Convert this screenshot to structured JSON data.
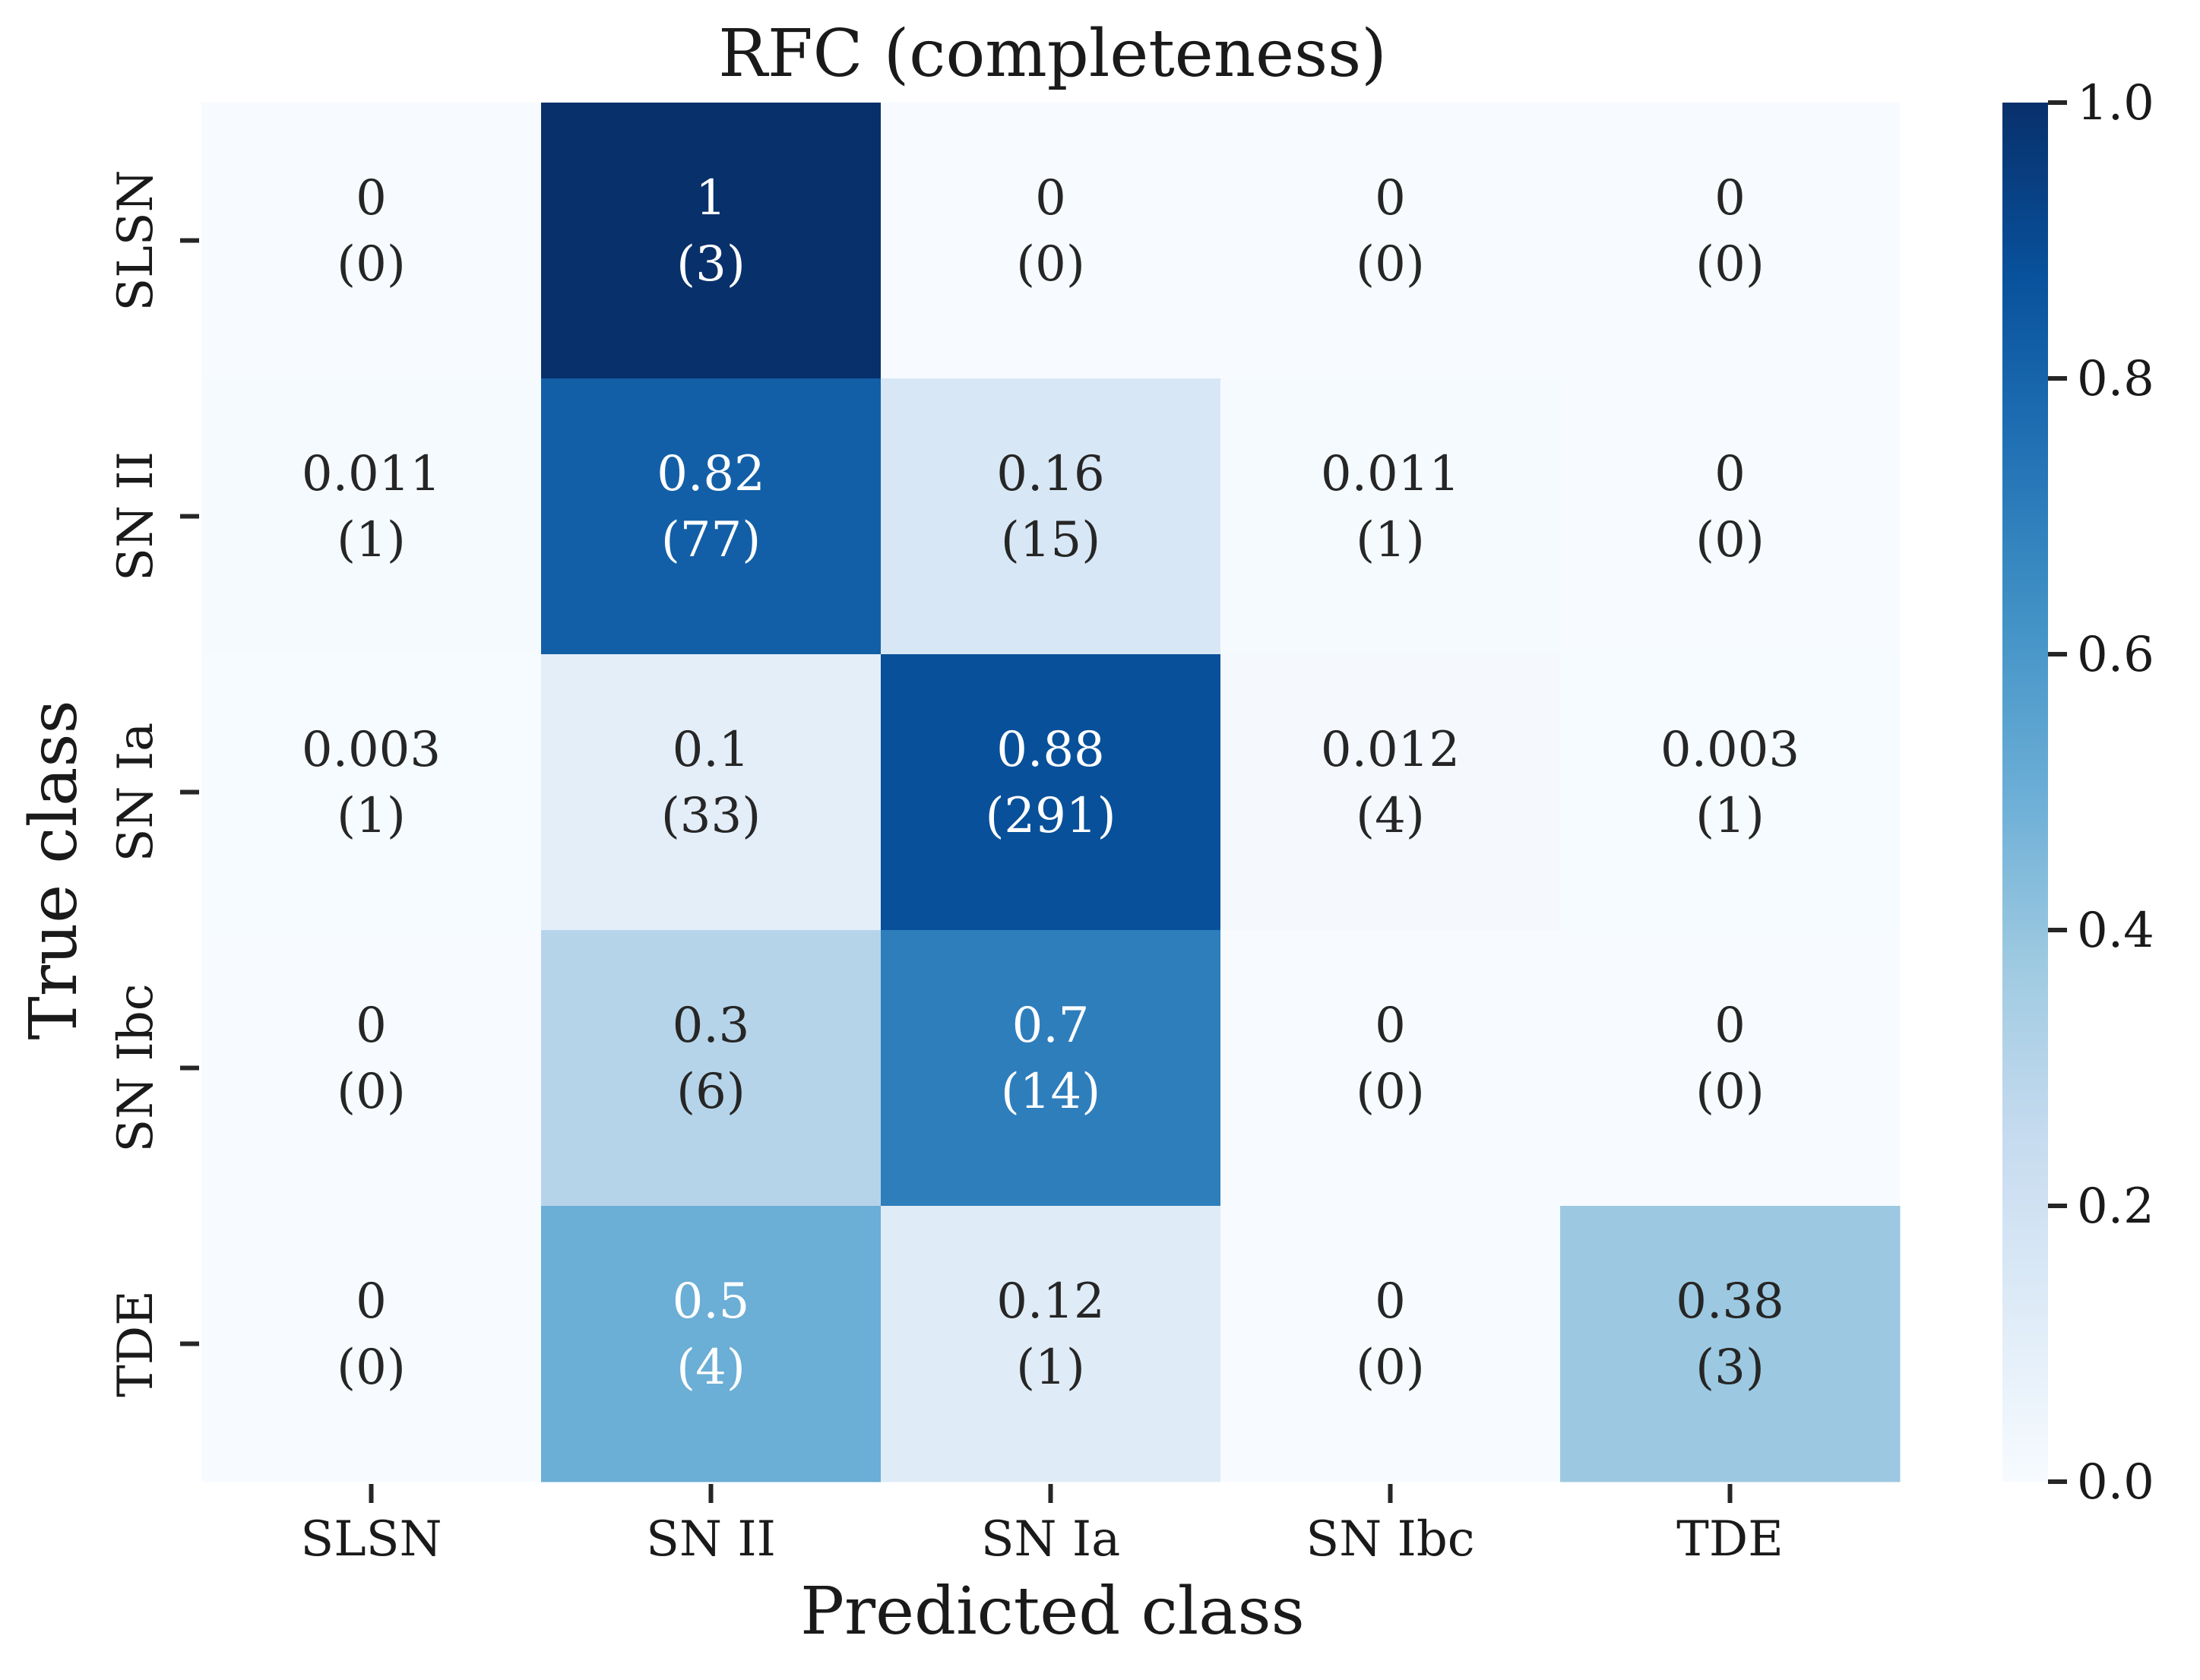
{
  "chart_data": {
    "type": "heatmap",
    "title": "RFC (completeness)",
    "xlabel": "Predicted class",
    "ylabel": "True class",
    "x_categories": [
      "SLSN",
      "SN II",
      "SN Ia",
      "SN Ibc",
      "TDE"
    ],
    "y_categories": [
      "SLSN",
      "SN II",
      "SN Ia",
      "SN Ibc",
      "TDE"
    ],
    "values": [
      [
        0,
        1,
        0,
        0,
        0
      ],
      [
        0.011,
        0.82,
        0.16,
        0.011,
        0
      ],
      [
        0.003,
        0.1,
        0.88,
        0.012,
        0.003
      ],
      [
        0,
        0.3,
        0.7,
        0,
        0
      ],
      [
        0,
        0.5,
        0.12,
        0,
        0.38
      ]
    ],
    "value_labels": [
      [
        "0",
        "1",
        "0",
        "0",
        "0"
      ],
      [
        "0.011",
        "0.82",
        "0.16",
        "0.011",
        "0"
      ],
      [
        "0.003",
        "0.1",
        "0.88",
        "0.012",
        "0.003"
      ],
      [
        "0",
        "0.3",
        "0.7",
        "0",
        "0"
      ],
      [
        "0",
        "0.5",
        "0.12",
        "0",
        "0.38"
      ]
    ],
    "count_labels": [
      [
        "(0)",
        "(3)",
        "(0)",
        "(0)",
        "(0)"
      ],
      [
        "(1)",
        "(77)",
        "(15)",
        "(1)",
        "(0)"
      ],
      [
        "(1)",
        "(33)",
        "(291)",
        "(4)",
        "(1)"
      ],
      [
        "(0)",
        "(6)",
        "(14)",
        "(0)",
        "(0)"
      ],
      [
        "(0)",
        "(4)",
        "(1)",
        "(0)",
        "(3)"
      ]
    ],
    "colorbar": {
      "range": [
        0,
        1
      ],
      "ticks": [
        0.0,
        0.2,
        0.4,
        0.6,
        0.8,
        1.0
      ],
      "tick_labels": [
        "0.0",
        "0.2",
        "0.4",
        "0.6",
        "0.8",
        "1.0"
      ],
      "colormap": "Blues",
      "light_color": "#f7fbff",
      "dark_color": "#08306b"
    },
    "grid": false
  }
}
